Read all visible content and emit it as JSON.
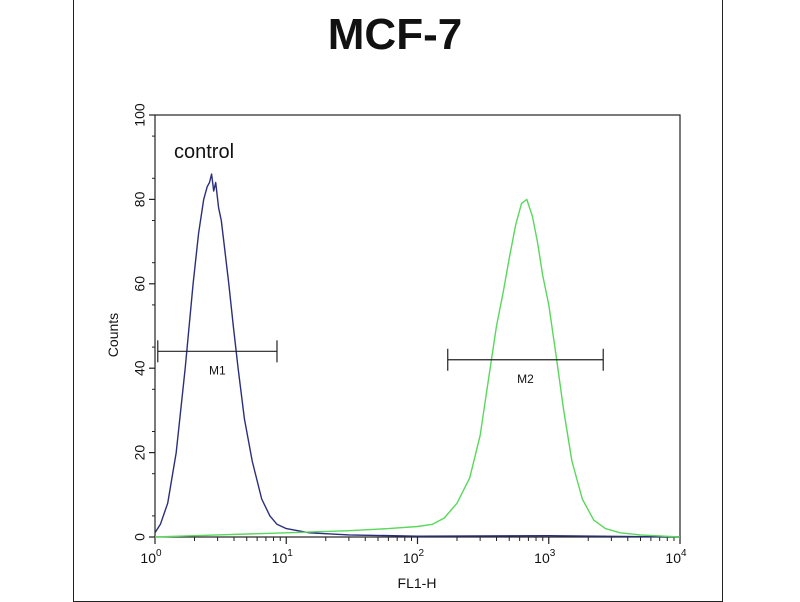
{
  "chart_data": {
    "type": "line",
    "title": "MCF-7",
    "xlabel": "FL1-H",
    "ylabel": "Counts",
    "x_scale": "log",
    "xlim": [
      1,
      10000
    ],
    "ylim": [
      0,
      100
    ],
    "x_ticks": [
      {
        "base": "10",
        "exp": "0"
      },
      {
        "base": "10",
        "exp": "1"
      },
      {
        "base": "10",
        "exp": "2"
      },
      {
        "base": "10",
        "exp": "3"
      },
      {
        "base": "10",
        "exp": "4"
      }
    ],
    "y_ticks": [
      "0",
      "20",
      "40",
      "60",
      "80",
      "100"
    ],
    "annotation": "control",
    "series": [
      {
        "color": "#2a2f7a",
        "x": [
          1.0,
          1.1,
          1.25,
          1.45,
          1.7,
          1.95,
          2.15,
          2.35,
          2.5,
          2.6,
          2.7,
          2.8,
          2.9,
          3.05,
          3.2,
          3.4,
          3.65,
          3.95,
          4.3,
          4.8,
          5.5,
          6.5,
          7.5,
          8.5,
          10,
          15,
          30,
          100,
          1000,
          10000
        ],
        "y": [
          1,
          3,
          8,
          20,
          40,
          60,
          72,
          80,
          83,
          84,
          86,
          82,
          84,
          78,
          75,
          68,
          60,
          50,
          40,
          28,
          18,
          9,
          5,
          3,
          2,
          1,
          0.5,
          0.2,
          0.3,
          0
        ]
      },
      {
        "color": "#59d85c",
        "x": [
          1,
          3,
          10,
          30,
          60,
          100,
          130,
          160,
          200,
          250,
          300,
          350,
          400,
          450,
          500,
          560,
          620,
          680,
          750,
          820,
          900,
          1000,
          1150,
          1300,
          1500,
          1800,
          2200,
          2700,
          3500,
          5000,
          10000
        ],
        "y": [
          0,
          0.5,
          1,
          1.5,
          2,
          2.5,
          3,
          4.5,
          8,
          14,
          24,
          38,
          50,
          58,
          66,
          74,
          79,
          80,
          76,
          70,
          62,
          55,
          42,
          30,
          18,
          9,
          4,
          2,
          1,
          0.5,
          0
        ]
      }
    ],
    "markers": [
      {
        "label": "M1",
        "x1": 1.05,
        "x2": 8.5,
        "y": 44
      },
      {
        "label": "M2",
        "x1": 170,
        "x2": 2600,
        "y": 42
      }
    ]
  }
}
